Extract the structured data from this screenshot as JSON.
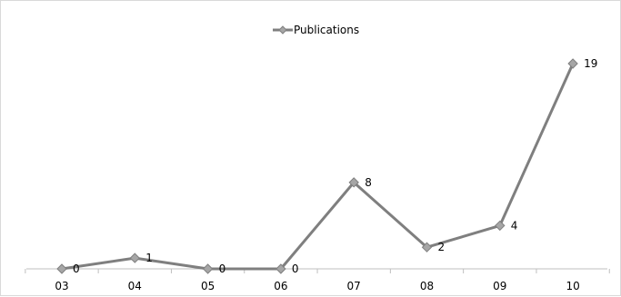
{
  "chart_data": {
    "type": "line",
    "categories": [
      "03",
      "04",
      "05",
      "06",
      "07",
      "08",
      "09",
      "10"
    ],
    "series": [
      {
        "name": "Publications",
        "values": [
          0,
          1,
          0,
          0,
          8,
          2,
          4,
          19
        ],
        "color": "#7f7f7f"
      }
    ],
    "ylim": [
      0,
      19
    ],
    "grid": false,
    "legend": "top-center",
    "data_labels": true,
    "marker": "diamond"
  }
}
